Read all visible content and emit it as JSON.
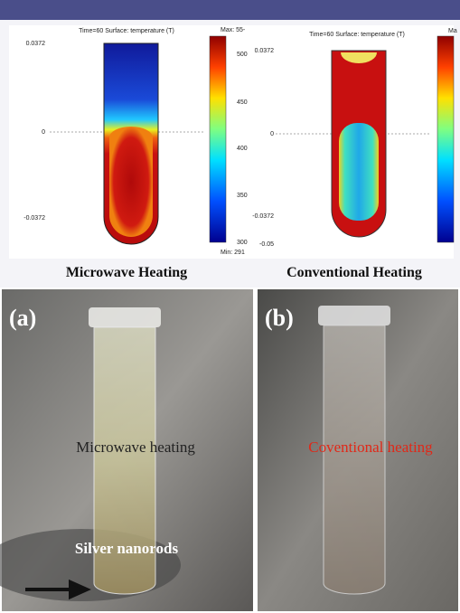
{
  "top": {
    "left_plot": {
      "title": "Time=60  Surface: temperature (T)",
      "yticks": [
        "0.0372",
        "0",
        "-0.0372"
      ],
      "colorbar_max": "Max: 55-",
      "colorbar_ticks": [
        "500",
        "450",
        "400",
        "350",
        "300"
      ],
      "colorbar_min": "Min: 291",
      "caption": "Microwave Heating"
    },
    "right_plot": {
      "title": "Time=60  Surface: temperature (T)",
      "yticks": [
        "0.0372",
        "0",
        "-0.0372",
        "-0.05"
      ],
      "colorbar_max": "Ma",
      "caption": "Conventional Heating"
    }
  },
  "bottom": {
    "left_photo": {
      "panel_label": "(a)",
      "label": "Microwave heating",
      "annotation": "Silver nanorods"
    },
    "right_photo": {
      "panel_label": "(b)",
      "label": "Coventional heating"
    }
  }
}
